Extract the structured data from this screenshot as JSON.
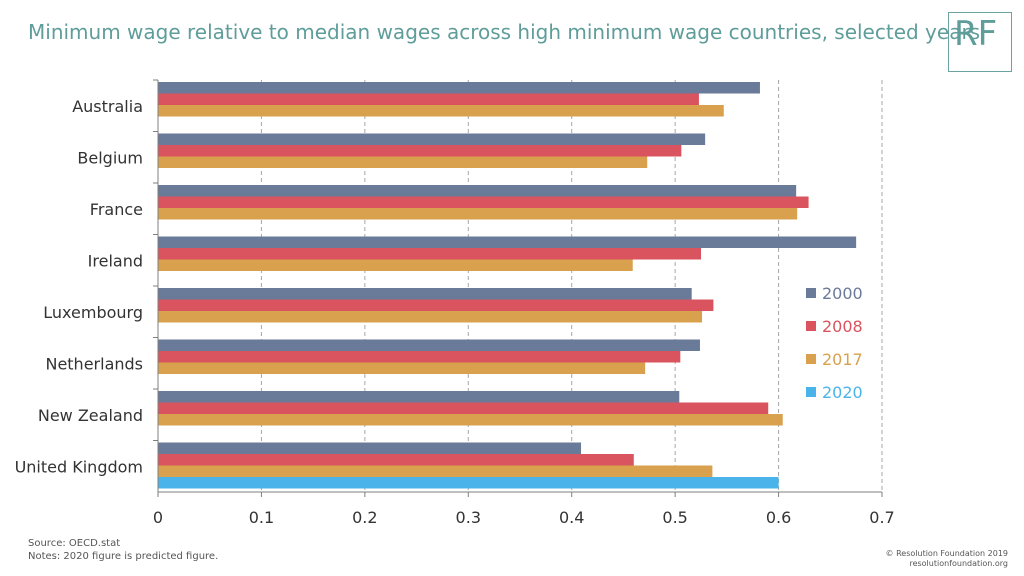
{
  "title": "Minimum wage relative to median wages across high minimum wage countries, selected years",
  "logo": {
    "text": "RF"
  },
  "footer": {
    "source": "Source: OECD.stat",
    "notes": "Notes: 2020 figure is predicted figure.",
    "copyright": "© Resolution Foundation 2019",
    "website": "resolutionfoundation.org"
  },
  "chart_data": {
    "type": "bar",
    "orientation": "horizontal",
    "title": "Minimum wage relative to median wages across high minimum wage countries, selected years",
    "categories": [
      "Australia",
      "Belgium",
      "France",
      "Ireland",
      "Luxembourg",
      "Netherlands",
      "New Zealand",
      "United Kingdom"
    ],
    "series": [
      {
        "name": "2000",
        "color": "#6a7a99",
        "values": [
          0.582,
          0.529,
          0.617,
          0.675,
          0.516,
          0.524,
          0.504,
          0.409
        ]
      },
      {
        "name": "2008",
        "color": "#d9545e",
        "values": [
          0.523,
          0.506,
          0.629,
          0.525,
          0.537,
          0.505,
          0.59,
          0.46
        ]
      },
      {
        "name": "2017",
        "color": "#d9a04e",
        "values": [
          0.547,
          0.473,
          0.618,
          0.459,
          0.526,
          0.471,
          0.604,
          0.536
        ]
      },
      {
        "name": "2020",
        "color": "#4ab4ea",
        "values": [
          null,
          null,
          null,
          null,
          null,
          null,
          null,
          0.6
        ]
      }
    ],
    "xlim": [
      0,
      0.7
    ],
    "xticks": [
      "0",
      "0.1",
      "0.2",
      "0.3",
      "0.4",
      "0.5",
      "0.6",
      "0.7"
    ],
    "xlabel": "",
    "ylabel": "",
    "grid": "vertical-dashed",
    "legend": "right"
  }
}
